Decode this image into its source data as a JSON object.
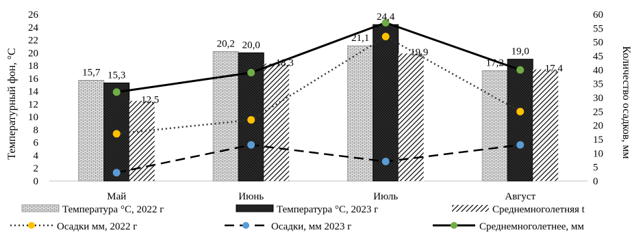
{
  "chart_data": {
    "type": "bar",
    "categories": [
      "Май",
      "Июнь",
      "Июль",
      "Август"
    ],
    "ylabel_left": "Температурный фон, °C",
    "ylabel_right": "Количество осадков, мм",
    "ylim_left": [
      0,
      26
    ],
    "yticks_left": [
      0,
      2,
      4,
      6,
      8,
      10,
      12,
      14,
      16,
      18,
      20,
      22,
      24,
      26
    ],
    "ylim_right": [
      0,
      60
    ],
    "yticks_right": [
      0,
      5,
      10,
      15,
      20,
      25,
      30,
      35,
      40,
      45,
      50,
      55,
      60
    ],
    "grid": false,
    "legend_position": "bottom",
    "bar_series": [
      {
        "name": "Температура °С,  2022 г",
        "values": [
          15.7,
          20.2,
          21.1,
          17.2
        ],
        "labels": [
          "15,7",
          "20,2",
          "21,1",
          "17,2"
        ],
        "pattern": "brick"
      },
      {
        "name": "Температура °С, 2023 г",
        "values": [
          15.3,
          20.0,
          24.4,
          19.0
        ],
        "labels": [
          "15,3",
          "20,0",
          "24,4",
          "19,0"
        ],
        "pattern": "dark"
      },
      {
        "name": "Среднемноголетняя t",
        "values": [
          12.5,
          18.3,
          19.9,
          17.4
        ],
        "labels": [
          "12,5",
          "18,3",
          "19,9",
          "17,4"
        ],
        "pattern": "diagonal"
      }
    ],
    "line_series": [
      {
        "name": "Осадки мм, 2022 г",
        "values": [
          17,
          22,
          52,
          25
        ],
        "style": "dotted",
        "color": "#f5c400",
        "marker_color": "#ffc000"
      },
      {
        "name": "Осадки, мм 2023 г",
        "values": [
          3,
          13,
          7,
          13
        ],
        "style": "dashed",
        "color": "#000000",
        "marker_color": "#5b9bd5"
      },
      {
        "name": "Среднемноголетнее, мм",
        "values": [
          32,
          39,
          57,
          40
        ],
        "style": "solid",
        "color": "#000000",
        "marker_color": "#70ad47"
      }
    ]
  }
}
